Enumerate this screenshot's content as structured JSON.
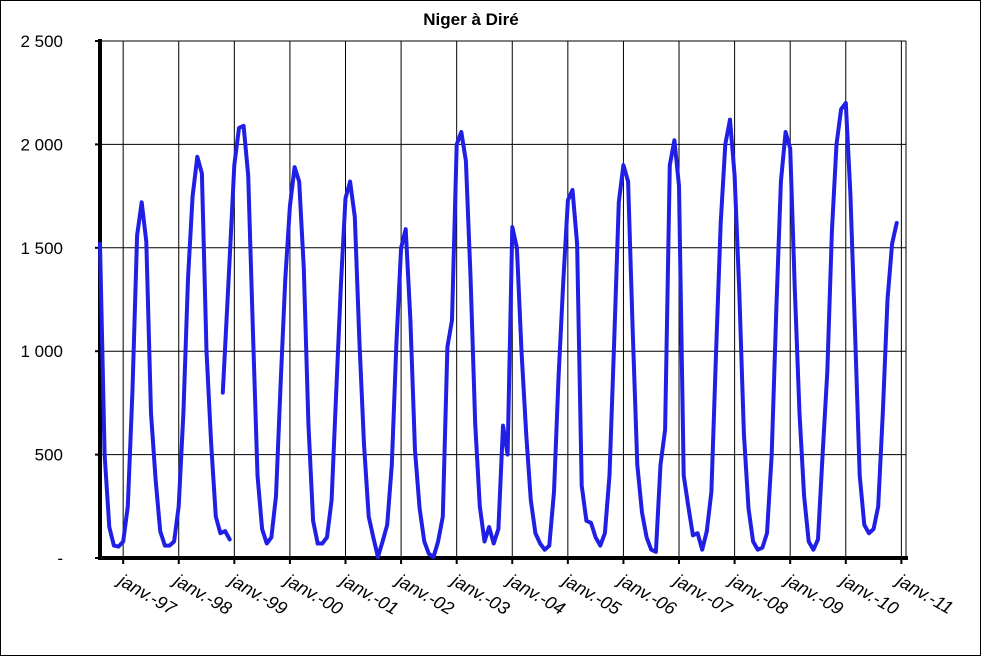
{
  "chart_data": {
    "type": "line",
    "title": "Niger à Diré",
    "xlabel": "",
    "ylabel": "",
    "ylim": [
      0,
      2500
    ],
    "yticks": [
      0,
      500,
      1000,
      1500,
      2000,
      2500
    ],
    "ytick_labels": [
      "-",
      "500",
      "1 000",
      "1 500",
      "2 000",
      "2 500"
    ],
    "xtick_labels": [
      "janv.-97",
      "janv.-98",
      "janv.-99",
      "janv.-00",
      "janv.-01",
      "janv.-02",
      "janv.-03",
      "janv.-04",
      "janv.-05",
      "janv.-06",
      "janv.-07",
      "janv.-08",
      "janv.-09",
      "janv.-10",
      "janv.-11"
    ],
    "grid": true,
    "legend": "none",
    "line_color": "#1f1fe6",
    "series": [
      {
        "x_unit": "months since janv.-97",
        "segments": [
          [
            [
              0,
              1520
            ],
            [
              1,
              500
            ],
            [
              2,
              150
            ],
            [
              3,
              60
            ],
            [
              4,
              55
            ],
            [
              5,
              80
            ],
            [
              6,
              250
            ],
            [
              7,
              800
            ],
            [
              8,
              1560
            ],
            [
              9,
              1720
            ],
            [
              10,
              1530
            ],
            [
              11,
              700
            ]
          ],
          [
            [
              11,
              700
            ],
            [
              12,
              380
            ],
            [
              13,
              130
            ],
            [
              14,
              60
            ],
            [
              15,
              60
            ],
            [
              16,
              80
            ],
            [
              17,
              250
            ],
            [
              18,
              700
            ],
            [
              19,
              1350
            ],
            [
              20,
              1750
            ],
            [
              21,
              1940
            ],
            [
              22,
              1860
            ],
            [
              23,
              1000
            ]
          ],
          [
            [
              23,
              1000
            ],
            [
              24,
              550
            ],
            [
              25,
              200
            ],
            [
              26,
              120
            ],
            [
              27,
              130
            ],
            [
              28,
              90
            ]
          ],
          [
            [
              26.5,
              800
            ],
            [
              28,
              1450
            ],
            [
              29,
              1900
            ],
            [
              30,
              2080
            ],
            [
              31,
              2090
            ],
            [
              32,
              1850
            ],
            [
              33,
              1100
            ],
            [
              34,
              400
            ],
            [
              35,
              140
            ],
            [
              36,
              70
            ],
            [
              37,
              100
            ],
            [
              38,
              300
            ],
            [
              39,
              850
            ],
            [
              40,
              1350
            ],
            [
              41,
              1700
            ],
            [
              42,
              1890
            ],
            [
              43,
              1820
            ],
            [
              44,
              1400
            ],
            [
              45,
              650
            ],
            [
              46,
              180
            ],
            [
              47,
              70
            ]
          ],
          [
            [
              47,
              70
            ],
            [
              48,
              70
            ],
            [
              49,
              100
            ],
            [
              50,
              280
            ],
            [
              51,
              800
            ],
            [
              52,
              1320
            ],
            [
              53,
              1740
            ],
            [
              54,
              1820
            ],
            [
              55,
              1650
            ],
            [
              56,
              1050
            ],
            [
              57,
              550
            ],
            [
              58,
              200
            ],
            [
              59,
              100
            ],
            [
              60,
              5
            ]
          ],
          [
            [
              60,
              5
            ],
            [
              61,
              80
            ],
            [
              62,
              160
            ],
            [
              63,
              450
            ],
            [
              64,
              1050
            ],
            [
              65,
              1500
            ],
            [
              66,
              1590
            ],
            [
              67,
              1150
            ],
            [
              68,
              520
            ],
            [
              69,
              240
            ],
            [
              70,
              80
            ],
            [
              71,
              20
            ],
            [
              72,
              5
            ]
          ],
          [
            [
              72,
              5
            ],
            [
              73,
              80
            ],
            [
              74,
              200
            ],
            [
              75,
              1020
            ],
            [
              76,
              1150
            ],
            [
              77,
              2000
            ],
            [
              78,
              2060
            ],
            [
              79,
              1920
            ],
            [
              80,
              1350
            ],
            [
              81,
              650
            ],
            [
              82,
              250
            ],
            [
              83,
              80
            ],
            [
              84,
              150
            ],
            [
              85,
              70
            ],
            [
              86,
              140
            ],
            [
              87,
              640
            ],
            [
              88,
              500
            ],
            [
              89,
              1600
            ],
            [
              90,
              1500
            ],
            [
              91,
              1000
            ],
            [
              92,
              600
            ],
            [
              93,
              280
            ],
            [
              94,
              120
            ],
            [
              95,
              70
            ],
            [
              96,
              40
            ],
            [
              97,
              60
            ],
            [
              98,
              320
            ],
            [
              99,
              880
            ],
            [
              100,
              1330
            ],
            [
              101,
              1730
            ],
            [
              102,
              1780
            ],
            [
              103,
              1520
            ]
          ],
          [
            [
              103,
              1520
            ],
            [
              104,
              350
            ],
            [
              105,
              180
            ],
            [
              106,
              170
            ],
            [
              107,
              100
            ],
            [
              108,
              60
            ],
            [
              109,
              120
            ],
            [
              110,
              400
            ],
            [
              111,
              1050
            ],
            [
              112,
              1720
            ],
            [
              113,
              1900
            ],
            [
              114,
              1820
            ],
            [
              115,
              1100
            ],
            [
              116,
              450
            ],
            [
              117,
              220
            ],
            [
              118,
              100
            ],
            [
              119,
              40
            ],
            [
              120,
              30
            ],
            [
              121,
              450
            ],
            [
              122,
              620
            ],
            [
              123,
              1900
            ],
            [
              124,
              2020
            ],
            [
              125,
              1800
            ],
            [
              126,
              400
            ],
            [
              127,
              250
            ],
            [
              128,
              110
            ],
            [
              129,
              120
            ],
            [
              130,
              40
            ],
            [
              131,
              130
            ]
          ],
          [
            [
              131,
              130
            ],
            [
              132,
              320
            ],
            [
              133,
              1000
            ],
            [
              134,
              1620
            ],
            [
              135,
              2000
            ],
            [
              136,
              2120
            ],
            [
              137,
              1850
            ],
            [
              138,
              1300
            ],
            [
              139,
              600
            ],
            [
              140,
              240
            ],
            [
              141,
              80
            ],
            [
              142,
              40
            ],
            [
              143,
              50
            ],
            [
              144,
              120
            ],
            [
              145,
              500
            ],
            [
              146,
              1200
            ],
            [
              147,
              1820
            ],
            [
              148,
              2060
            ],
            [
              149,
              1980
            ],
            [
              150,
              1300
            ],
            [
              151,
              700
            ],
            [
              152,
              300
            ],
            [
              153,
              80
            ],
            [
              154,
              40
            ],
            [
              155,
              90
            ],
            [
              156,
              500
            ],
            [
              157,
              900
            ],
            [
              158,
              1580
            ],
            [
              159,
              2000
            ],
            [
              160,
              2170
            ],
            [
              161,
              2200
            ],
            [
              162,
              1760
            ],
            [
              163,
              1100
            ],
            [
              164,
              400
            ],
            [
              165,
              160
            ],
            [
              166,
              120
            ],
            [
              167,
              140
            ],
            [
              168,
              250
            ],
            [
              169,
              700
            ],
            [
              170,
              1250
            ],
            [
              171,
              1520
            ],
            [
              172,
              1620
            ]
          ]
        ]
      }
    ]
  }
}
